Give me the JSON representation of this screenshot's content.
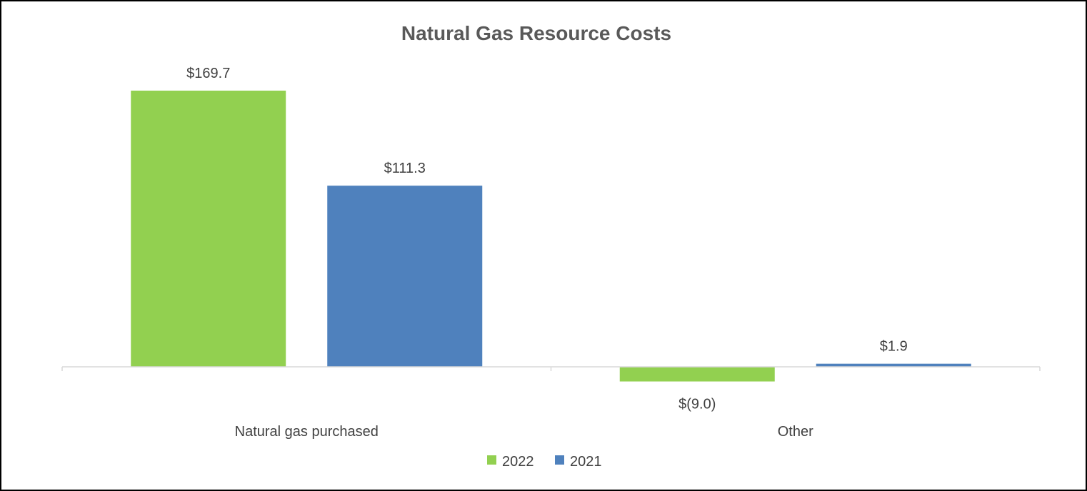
{
  "chart_data": {
    "type": "bar",
    "title": "Natural Gas Resource Costs",
    "categories": [
      "Natural gas purchased",
      "Other"
    ],
    "series": [
      {
        "name": "2022",
        "color": "#92d050",
        "values": [
          169.7,
          -9.0
        ],
        "labels": [
          "$169.7",
          "$(9.0)"
        ]
      },
      {
        "name": "2021",
        "color": "#4f81bd",
        "values": [
          111.3,
          1.9
        ],
        "labels": [
          "$111.3",
          "$1.9"
        ]
      }
    ],
    "xlabel": "",
    "ylabel": "",
    "ylim": [
      -10,
      175
    ],
    "grid": false,
    "legend_position": "bottom"
  }
}
